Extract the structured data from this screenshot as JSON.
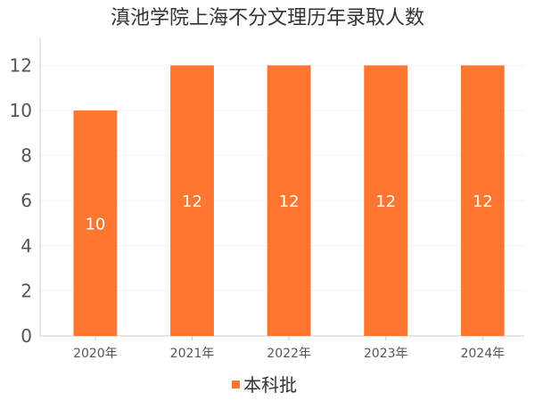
{
  "chart_data": {
    "type": "bar",
    "title": "滇池学院上海不分文理历年录取人数",
    "categories": [
      "2020年",
      "2021年",
      "2022年",
      "2023年",
      "2024年"
    ],
    "series": [
      {
        "name": "本科批",
        "values": [
          10,
          12,
          12,
          12,
          12
        ],
        "color": "#fe7731"
      }
    ],
    "yticks": [
      0,
      2,
      4,
      6,
      8,
      10,
      12
    ],
    "ylim": [
      0,
      13.2
    ],
    "grid": true,
    "legend_position": "bottom"
  }
}
